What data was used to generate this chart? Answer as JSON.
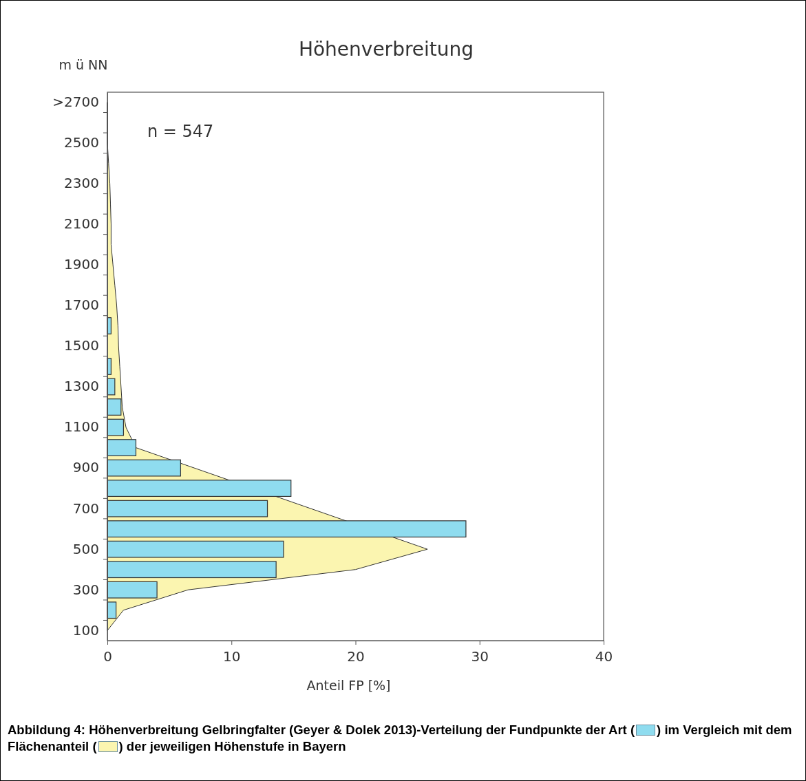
{
  "chart_data": {
    "type": "bar",
    "orientation": "horizontal",
    "title": "Höhenverbreitung",
    "ylabel": "m ü NN",
    "xlabel": "Anteil FP [%]",
    "categories": [
      ">2700",
      null,
      "2500",
      null,
      "2300",
      null,
      "2100",
      null,
      "1900",
      null,
      "1700",
      null,
      "1500",
      null,
      "1300",
      null,
      "1100",
      null,
      "900",
      null,
      "700",
      null,
      "500",
      null,
      "300",
      null,
      "100"
    ],
    "series": [
      {
        "type": "area",
        "color": "#fbf5b0",
        "values": [
          0,
          0,
          0,
          0.1,
          0.2,
          0.25,
          0.3,
          0.3,
          0.45,
          0.6,
          0.75,
          0.85,
          0.9,
          1.0,
          1.1,
          1.2,
          1.5,
          2.3,
          null,
          null,
          null,
          null,
          25.8,
          20.0,
          6.5,
          1.3,
          0
        ]
      },
      {
        "color": "#8fdcef",
        "values": [
          0,
          0,
          0,
          0,
          0,
          0,
          0,
          0,
          0,
          0,
          0,
          0.3,
          0,
          0.3,
          0.6,
          1.1,
          1.3,
          2.3,
          5.9,
          14.8,
          12.9,
          28.9,
          14.2,
          13.6,
          4.0,
          0.7,
          0
        ]
      }
    ],
    "xlim": [
      0,
      40
    ],
    "xticks": [
      0,
      10,
      20,
      30,
      40
    ],
    "grid": false,
    "annotations": [
      "n = 547",
      "Abbildung 4: Höhenverbreitung Gelbringfalter (Geyer & Dolek 2013)-Verteilung der Fundpunkte der Art ( ) im Vergleich mit dem Flächenanteil ( ) der jeweiligen Höhenstufe in Bayern"
    ]
  }
}
